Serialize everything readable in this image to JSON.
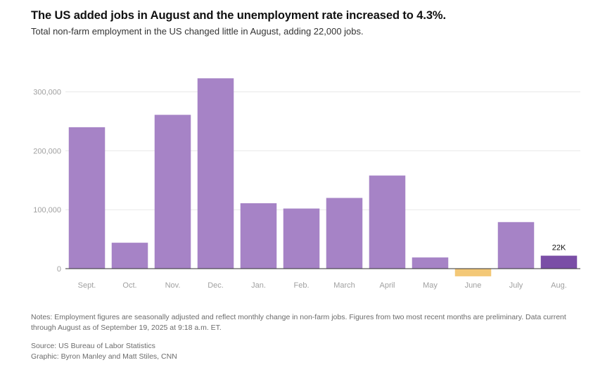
{
  "header": {
    "title": "The US added jobs in August and the unemployment rate increased to 4.3%.",
    "subtitle": "Total non-farm employment in the US changed little in August, adding 22,000 jobs."
  },
  "chart_data": {
    "type": "bar",
    "title": "The US added jobs in August and the unemployment rate increased to 4.3%.",
    "subtitle": "Total non-farm employment in the US changed little in August, adding 22,000 jobs.",
    "categories": [
      "Sept.",
      "Oct.",
      "Nov.",
      "Dec.",
      "Jan.",
      "Feb.",
      "March",
      "April",
      "May",
      "June",
      "July",
      "Aug."
    ],
    "values": [
      240000,
      44000,
      261000,
      323000,
      111000,
      102000,
      120000,
      158000,
      19000,
      -13000,
      79000,
      22000
    ],
    "yticks": [
      0,
      100000,
      200000,
      300000
    ],
    "ytick_labels": [
      "0",
      "100,000",
      "200,000",
      "300,000"
    ],
    "ylim": [
      -15000,
      335000
    ],
    "xlabel": "",
    "ylabel": "",
    "grid": true,
    "annotations": [
      {
        "category": "Aug.",
        "text": "22K"
      }
    ],
    "colors": {
      "default": "#a683c6",
      "negative": "#f3c877",
      "highlight": "#7a4ea6"
    },
    "highlight_category": "Aug."
  },
  "footer": {
    "notes": "Notes: Employment figures are seasonally adjusted and reflect monthly change in non-farm jobs. Figures from two most recent months are preliminary. Data current through August as of September 19, 2025 at 9:18 a.m. ET.",
    "source": "Source: US Bureau of Labor Statistics",
    "graphic": "Graphic: Byron Manley and Matt Stiles, CNN"
  }
}
